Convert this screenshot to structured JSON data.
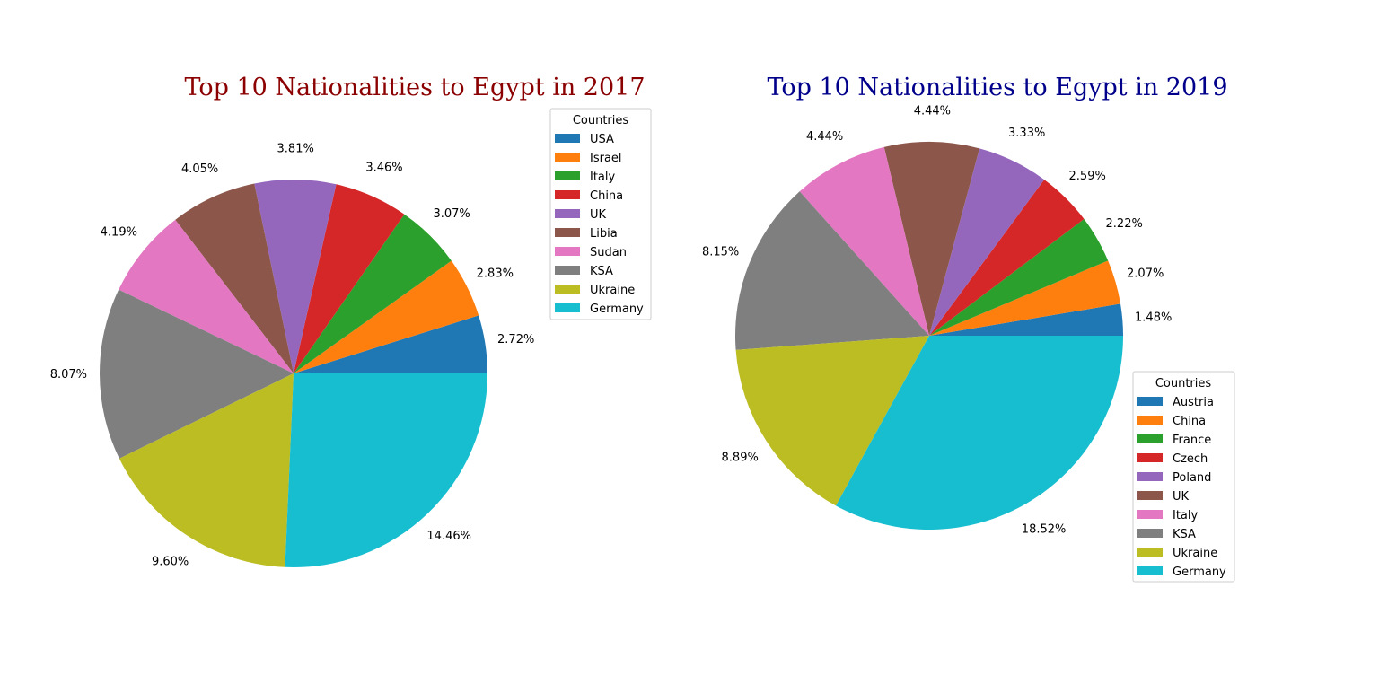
{
  "chart_data": [
    {
      "type": "pie",
      "title": "Top 10 Nationalities to Egypt in 2017",
      "title_color": "#8b0000",
      "legend_title": "Countries",
      "legend_position": "upper-right",
      "labels": [
        "USA",
        "Israel",
        "Italy",
        "China",
        "UK",
        "Libia",
        "Sudan",
        "KSA",
        "Ukraine",
        "Germany"
      ],
      "values": [
        2.72,
        2.83,
        3.07,
        3.46,
        3.81,
        4.05,
        4.19,
        8.07,
        9.6,
        14.46
      ],
      "value_labels": [
        "2.72%",
        "2.83%",
        "3.07%",
        "3.46%",
        "3.81%",
        "4.05%",
        "4.19%",
        "8.07%",
        "9.60%",
        "14.46%"
      ],
      "colors": [
        "#1f77b4",
        "#ff7f0e",
        "#2ca02c",
        "#d62728",
        "#9467bd",
        "#8c564b",
        "#e377c2",
        "#7f7f7f",
        "#bcbd22",
        "#17becf"
      ]
    },
    {
      "type": "pie",
      "title": "Top 10 Nationalities to Egypt in 2019",
      "title_color": "#00008b",
      "legend_title": "Countries",
      "legend_position": "lower-right",
      "labels": [
        "Austria",
        "China",
        "France",
        "Czech",
        "Poland",
        "UK",
        "Italy",
        "KSA",
        "Ukraine",
        "Germany"
      ],
      "values": [
        1.48,
        2.07,
        2.22,
        2.59,
        3.33,
        4.44,
        4.44,
        8.15,
        8.89,
        18.52
      ],
      "value_labels": [
        "1.48%",
        "2.07%",
        "2.22%",
        "2.59%",
        "3.33%",
        "4.44%",
        "4.44%",
        "8.15%",
        "8.89%",
        "18.52%"
      ],
      "colors": [
        "#1f77b4",
        "#ff7f0e",
        "#2ca02c",
        "#d62728",
        "#9467bd",
        "#8c564b",
        "#e377c2",
        "#7f7f7f",
        "#bcbd22",
        "#17becf"
      ]
    }
  ]
}
